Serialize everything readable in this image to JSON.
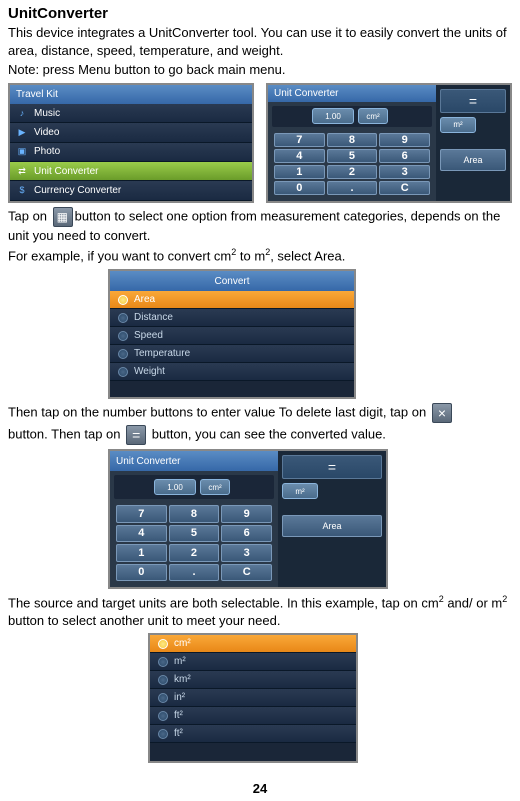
{
  "title": "UnitConverter",
  "intro1": "This device integrates a UnitConverter tool. You can use it to easily convert the units of area, distance, speed, temperature, and weight.",
  "intro2": "Note: press Menu button to go back main menu.",
  "shot1_menu": {
    "tab": "Travel Kit",
    "items": [
      "Music",
      "Video",
      "Photo",
      "Unit Converter",
      "Currency Converter"
    ],
    "highlighted_index": 3,
    "icons": [
      "♪",
      "▶",
      "▣",
      "⇄",
      "$"
    ]
  },
  "shot1_conv": {
    "header_left": "Unit Converter",
    "from_unit": "cm²",
    "to_unit": "m²",
    "area_label": "Area",
    "keypad": [
      "7",
      "8",
      "9",
      "4",
      "5",
      "6",
      "1",
      "2",
      "3",
      "0",
      ".",
      "C"
    ],
    "result_prefix": "1.00"
  },
  "para_tap1_a": "Tap on ",
  "para_tap1_b": "button to select one option from measurement categories, depends on the unit you need to convert.",
  "para_example_a": "For example, if you want to convert cm",
  "para_example_b": " to m",
  "para_example_c": ", select Area.",
  "shot2_convert_menu": {
    "header": "Convert",
    "items": [
      "Area",
      "Distance",
      "Speed",
      "Temperature",
      "Weight"
    ],
    "selected_index": 0
  },
  "para_then1_a": "Then tap on the number buttons to enter value To delete last digit, tap on ",
  "para_then1_b": "button. Then tap on ",
  "para_then1_c": " button, you can see the converted value.",
  "para_source_a": "The source and target units are both selectable. In this example, tap on cm",
  "para_source_b": " and/ or m",
  "para_source_c": " button to select another unit to meet your need.",
  "shot4_units": {
    "items": [
      "cm²",
      "m²",
      "km²",
      "in²",
      "ft²",
      "ft²"
    ],
    "selected_index": 0
  },
  "page_number": "24"
}
